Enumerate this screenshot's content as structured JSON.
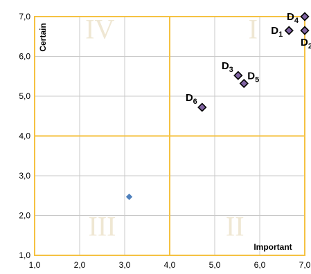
{
  "chart_data": {
    "type": "scatter",
    "xlim": [
      1,
      7
    ],
    "ylim": [
      1,
      7
    ],
    "x_ticks": [
      "1,0",
      "2,0",
      "3,0",
      "4,0",
      "5,0",
      "6,0",
      "7,0"
    ],
    "y_ticks": [
      "1,0",
      "2,0",
      "3,0",
      "4,0",
      "5,0",
      "6,0",
      "7,0"
    ],
    "xlabel": "Important",
    "ylabel": "Certain",
    "quadrant_divider": {
      "x": 4,
      "y": 4
    },
    "grid": true,
    "quadrant_labels": [
      {
        "text": "I",
        "x": 5.85,
        "y": 6.45
      },
      {
        "text": "IV",
        "x": 2.45,
        "y": 6.45
      },
      {
        "text": "III",
        "x": 2.5,
        "y": 1.5
      },
      {
        "text": "II",
        "x": 5.45,
        "y": 1.5
      }
    ],
    "points": [
      {
        "base": "D",
        "sub": "1",
        "x": 6.65,
        "y": 6.65,
        "label_pos": "left"
      },
      {
        "base": "D",
        "sub": "2",
        "x": 7.0,
        "y": 6.65,
        "label_pos": "below"
      },
      {
        "base": "D",
        "sub": "3",
        "x": 5.52,
        "y": 5.52,
        "label_pos": "above-left"
      },
      {
        "base": "D",
        "sub": "4",
        "x": 7.0,
        "y": 7.0,
        "label_pos": "left"
      },
      {
        "base": "D",
        "sub": "5",
        "x": 5.65,
        "y": 5.32,
        "label_pos": "above-right"
      },
      {
        "base": "D",
        "sub": "6",
        "x": 4.72,
        "y": 4.72,
        "label_pos": "above-left"
      },
      {
        "base": "",
        "sub": "",
        "x": 3.1,
        "y": 2.47,
        "label_pos": "none",
        "style": "plain"
      }
    ],
    "colors": {
      "frame": "#f5c242",
      "grid": "#c8c8c8",
      "marker_fill": "#8064a2",
      "marker_stroke": "#000000",
      "plain_marker": "#4f81bd",
      "roman": "#efe7d3"
    }
  }
}
